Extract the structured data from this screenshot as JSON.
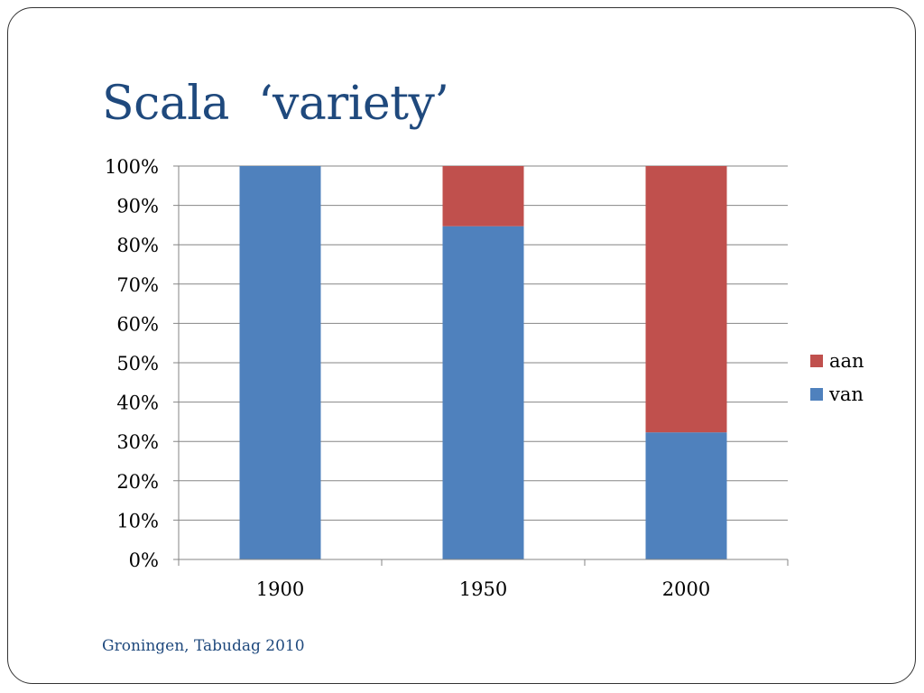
{
  "slide": {
    "title": "Scala  ‘variety’",
    "footer": "Groningen, Tabudag 2010"
  },
  "colors": {
    "title": "#1f497d",
    "van": "#4f81bd",
    "aan": "#c0504d",
    "gridline": "#868686"
  },
  "chart_data": {
    "type": "bar",
    "stacked": true,
    "percent": true,
    "categories": [
      "1900",
      "1950",
      "2000"
    ],
    "series": [
      {
        "name": "van",
        "values": [
          100,
          84.7,
          32.3
        ],
        "color": "#4f81bd"
      },
      {
        "name": "aan",
        "values": [
          0,
          15.3,
          67.7
        ],
        "color": "#c0504d"
      }
    ],
    "yticks": [
      "0%",
      "10%",
      "20%",
      "30%",
      "40%",
      "50%",
      "60%",
      "70%",
      "80%",
      "90%",
      "100%"
    ],
    "ylim": [
      0,
      100
    ],
    "grid": true,
    "legend": {
      "position": "right",
      "entries": [
        "aan",
        "van"
      ]
    }
  }
}
